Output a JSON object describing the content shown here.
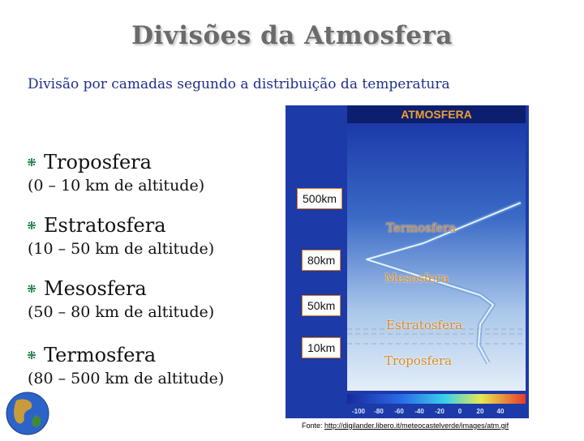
{
  "slide": {
    "title": "Divisões da Atmosfera",
    "subtitle": "Divisão por camadas segundo a distribuição da temperatura"
  },
  "layers": [
    {
      "name": "Troposfera",
      "range": "(0 – 10 km de altitude)"
    },
    {
      "name": "Estratosfera",
      "range": "(10 – 50 km de altitude)"
    },
    {
      "name": "Mesosfera",
      "range": "(50 – 80 km de altitude)"
    },
    {
      "name": "Termosfera",
      "range": "(80 – 500 km de altitude)"
    }
  ],
  "diagram": {
    "header": "ATMOSFERA",
    "km_labels": [
      "500km",
      "80km",
      "50km",
      "10km"
    ],
    "zone_labels": [
      "Termosfera",
      "Mesosfera",
      "Estratosfera",
      "Troposfera"
    ],
    "temperature_scale": [
      "-100",
      "-80",
      "-60",
      "-40",
      "-20",
      "0",
      "20",
      "40"
    ]
  },
  "source": {
    "prefix": "Fonte: ",
    "url": "http://digilander.libero.it/meteocastelverde/images/atm.gif"
  },
  "colors": {
    "title": "#6b6b6b",
    "subtitle": "#1f2f8c",
    "bullet": "#2e8b57",
    "km_border": "#e07b1a",
    "zone_label": "#d98a1f"
  }
}
